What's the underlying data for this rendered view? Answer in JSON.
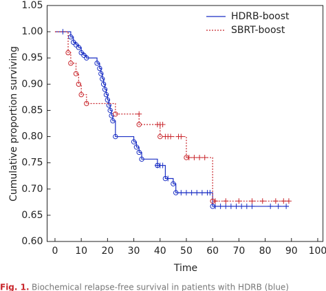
{
  "chart_data": {
    "type": "step",
    "xlabel": "Time",
    "ylabel": "Cumulative proportion surviving",
    "xlim": [
      -3,
      102
    ],
    "ylim": [
      0.6,
      1.05
    ],
    "xticks": [
      0,
      10,
      20,
      30,
      40,
      50,
      60,
      70,
      80,
      90,
      100
    ],
    "yticks": [
      {
        "value": 0.6,
        "label": "0.60"
      },
      {
        "value": 0.65,
        "label": "0.65"
      },
      {
        "value": 0.7,
        "label": "0.70"
      },
      {
        "value": 0.75,
        "label": "0.75"
      },
      {
        "value": 0.8,
        "label": "0.80"
      },
      {
        "value": 0.85,
        "label": "0.85"
      },
      {
        "value": 0.9,
        "label": "0.90"
      },
      {
        "value": 0.95,
        "label": "0.95"
      },
      {
        "value": 1.0,
        "label": "1.00"
      },
      {
        "value": 1.05,
        "label": "1.05"
      }
    ],
    "legend": "top-right",
    "series": [
      {
        "name": "HDRB-boost",
        "color": "#1a2fc4",
        "dash": "solid",
        "x": [
          0,
          6,
          7,
          8,
          9,
          10,
          11,
          12,
          16,
          17,
          17.5,
          18,
          18.5,
          19,
          19.5,
          20,
          20.5,
          21,
          21.5,
          22,
          23,
          30,
          31,
          32,
          33,
          39,
          42,
          45,
          46,
          60,
          89
        ],
        "values": [
          1.0,
          0.99,
          0.98,
          0.975,
          0.97,
          0.96,
          0.955,
          0.95,
          0.94,
          0.93,
          0.92,
          0.91,
          0.9,
          0.89,
          0.88,
          0.87,
          0.86,
          0.85,
          0.84,
          0.83,
          0.8,
          0.79,
          0.78,
          0.77,
          0.757,
          0.745,
          0.72,
          0.71,
          0.693,
          0.667,
          0.667
        ],
        "censored": {
          "x": [
            3,
            39,
            40,
            41,
            43,
            48,
            50,
            52,
            54,
            56,
            58,
            59,
            61,
            63,
            65,
            67,
            69,
            71,
            73,
            75,
            82,
            85,
            88
          ],
          "values": [
            1.0,
            0.745,
            0.745,
            0.745,
            0.72,
            0.693,
            0.693,
            0.693,
            0.693,
            0.693,
            0.693,
            0.693,
            0.667,
            0.667,
            0.667,
            0.667,
            0.667,
            0.667,
            0.667,
            0.667,
            0.667,
            0.667,
            0.667
          ]
        }
      },
      {
        "name": "SBRT-boost",
        "color": "#c8252b",
        "dash": "dotted",
        "x": [
          0,
          5,
          6,
          8,
          9,
          10,
          12,
          23,
          32,
          40,
          50,
          60,
          89
        ],
        "values": [
          1.0,
          0.96,
          0.94,
          0.92,
          0.9,
          0.88,
          0.863,
          0.843,
          0.823,
          0.8,
          0.76,
          0.677,
          0.677
        ],
        "censored": {
          "x": [
            32,
            39,
            40,
            41,
            42,
            43,
            44,
            47,
            48,
            51,
            53,
            55,
            57,
            61,
            65,
            70,
            75,
            79,
            84,
            87,
            89
          ],
          "values": [
            0.843,
            0.823,
            0.823,
            0.823,
            0.8,
            0.8,
            0.8,
            0.8,
            0.8,
            0.76,
            0.76,
            0.76,
            0.76,
            0.677,
            0.677,
            0.677,
            0.677,
            0.677,
            0.677,
            0.677,
            0.677
          ]
        }
      }
    ]
  },
  "caption": {
    "label": "Fig. 1.",
    "text": "Biochemical relapse-free survival in patients with HDRB (blue)"
  }
}
